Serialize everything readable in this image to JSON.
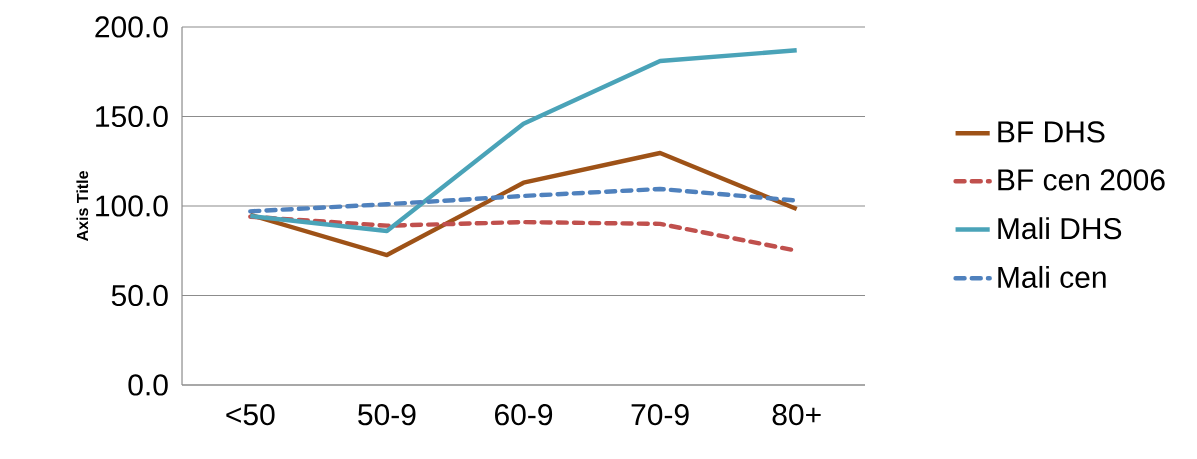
{
  "chart_data": {
    "type": "line",
    "ylabel": "Axis Title",
    "categories": [
      "<50",
      "50-9",
      "60-9",
      "70-9",
      "80+"
    ],
    "series": [
      {
        "name": "BF DHS",
        "color": "#9e5217",
        "line_style": "solid",
        "values": [
          95,
          72.6,
          113,
          129.6,
          98.3
        ]
      },
      {
        "name": "BF cen 2006",
        "color": "#c0504d",
        "line_style": "dashed",
        "values": [
          94,
          89,
          91,
          90,
          75
        ]
      },
      {
        "name": "Mali DHS",
        "color": "#4aa3b8",
        "line_style": "solid",
        "values": [
          94.4,
          86,
          146,
          181,
          187
        ]
      },
      {
        "name": "Mali cen",
        "color": "#4f81bd",
        "line_style": "dashed",
        "values": [
          97,
          101,
          105.6,
          109.5,
          103
        ]
      }
    ],
    "ylim": [
      0,
      200
    ],
    "yticks": [
      {
        "value": 0,
        "label": "0.0"
      },
      {
        "value": 50,
        "label": "50.0"
      },
      {
        "value": 100,
        "label": "100.0"
      },
      {
        "value": 150,
        "label": "150.0"
      },
      {
        "value": 200,
        "label": "200.0"
      }
    ],
    "grid": "y",
    "legend": "right",
    "marker": "none"
  }
}
